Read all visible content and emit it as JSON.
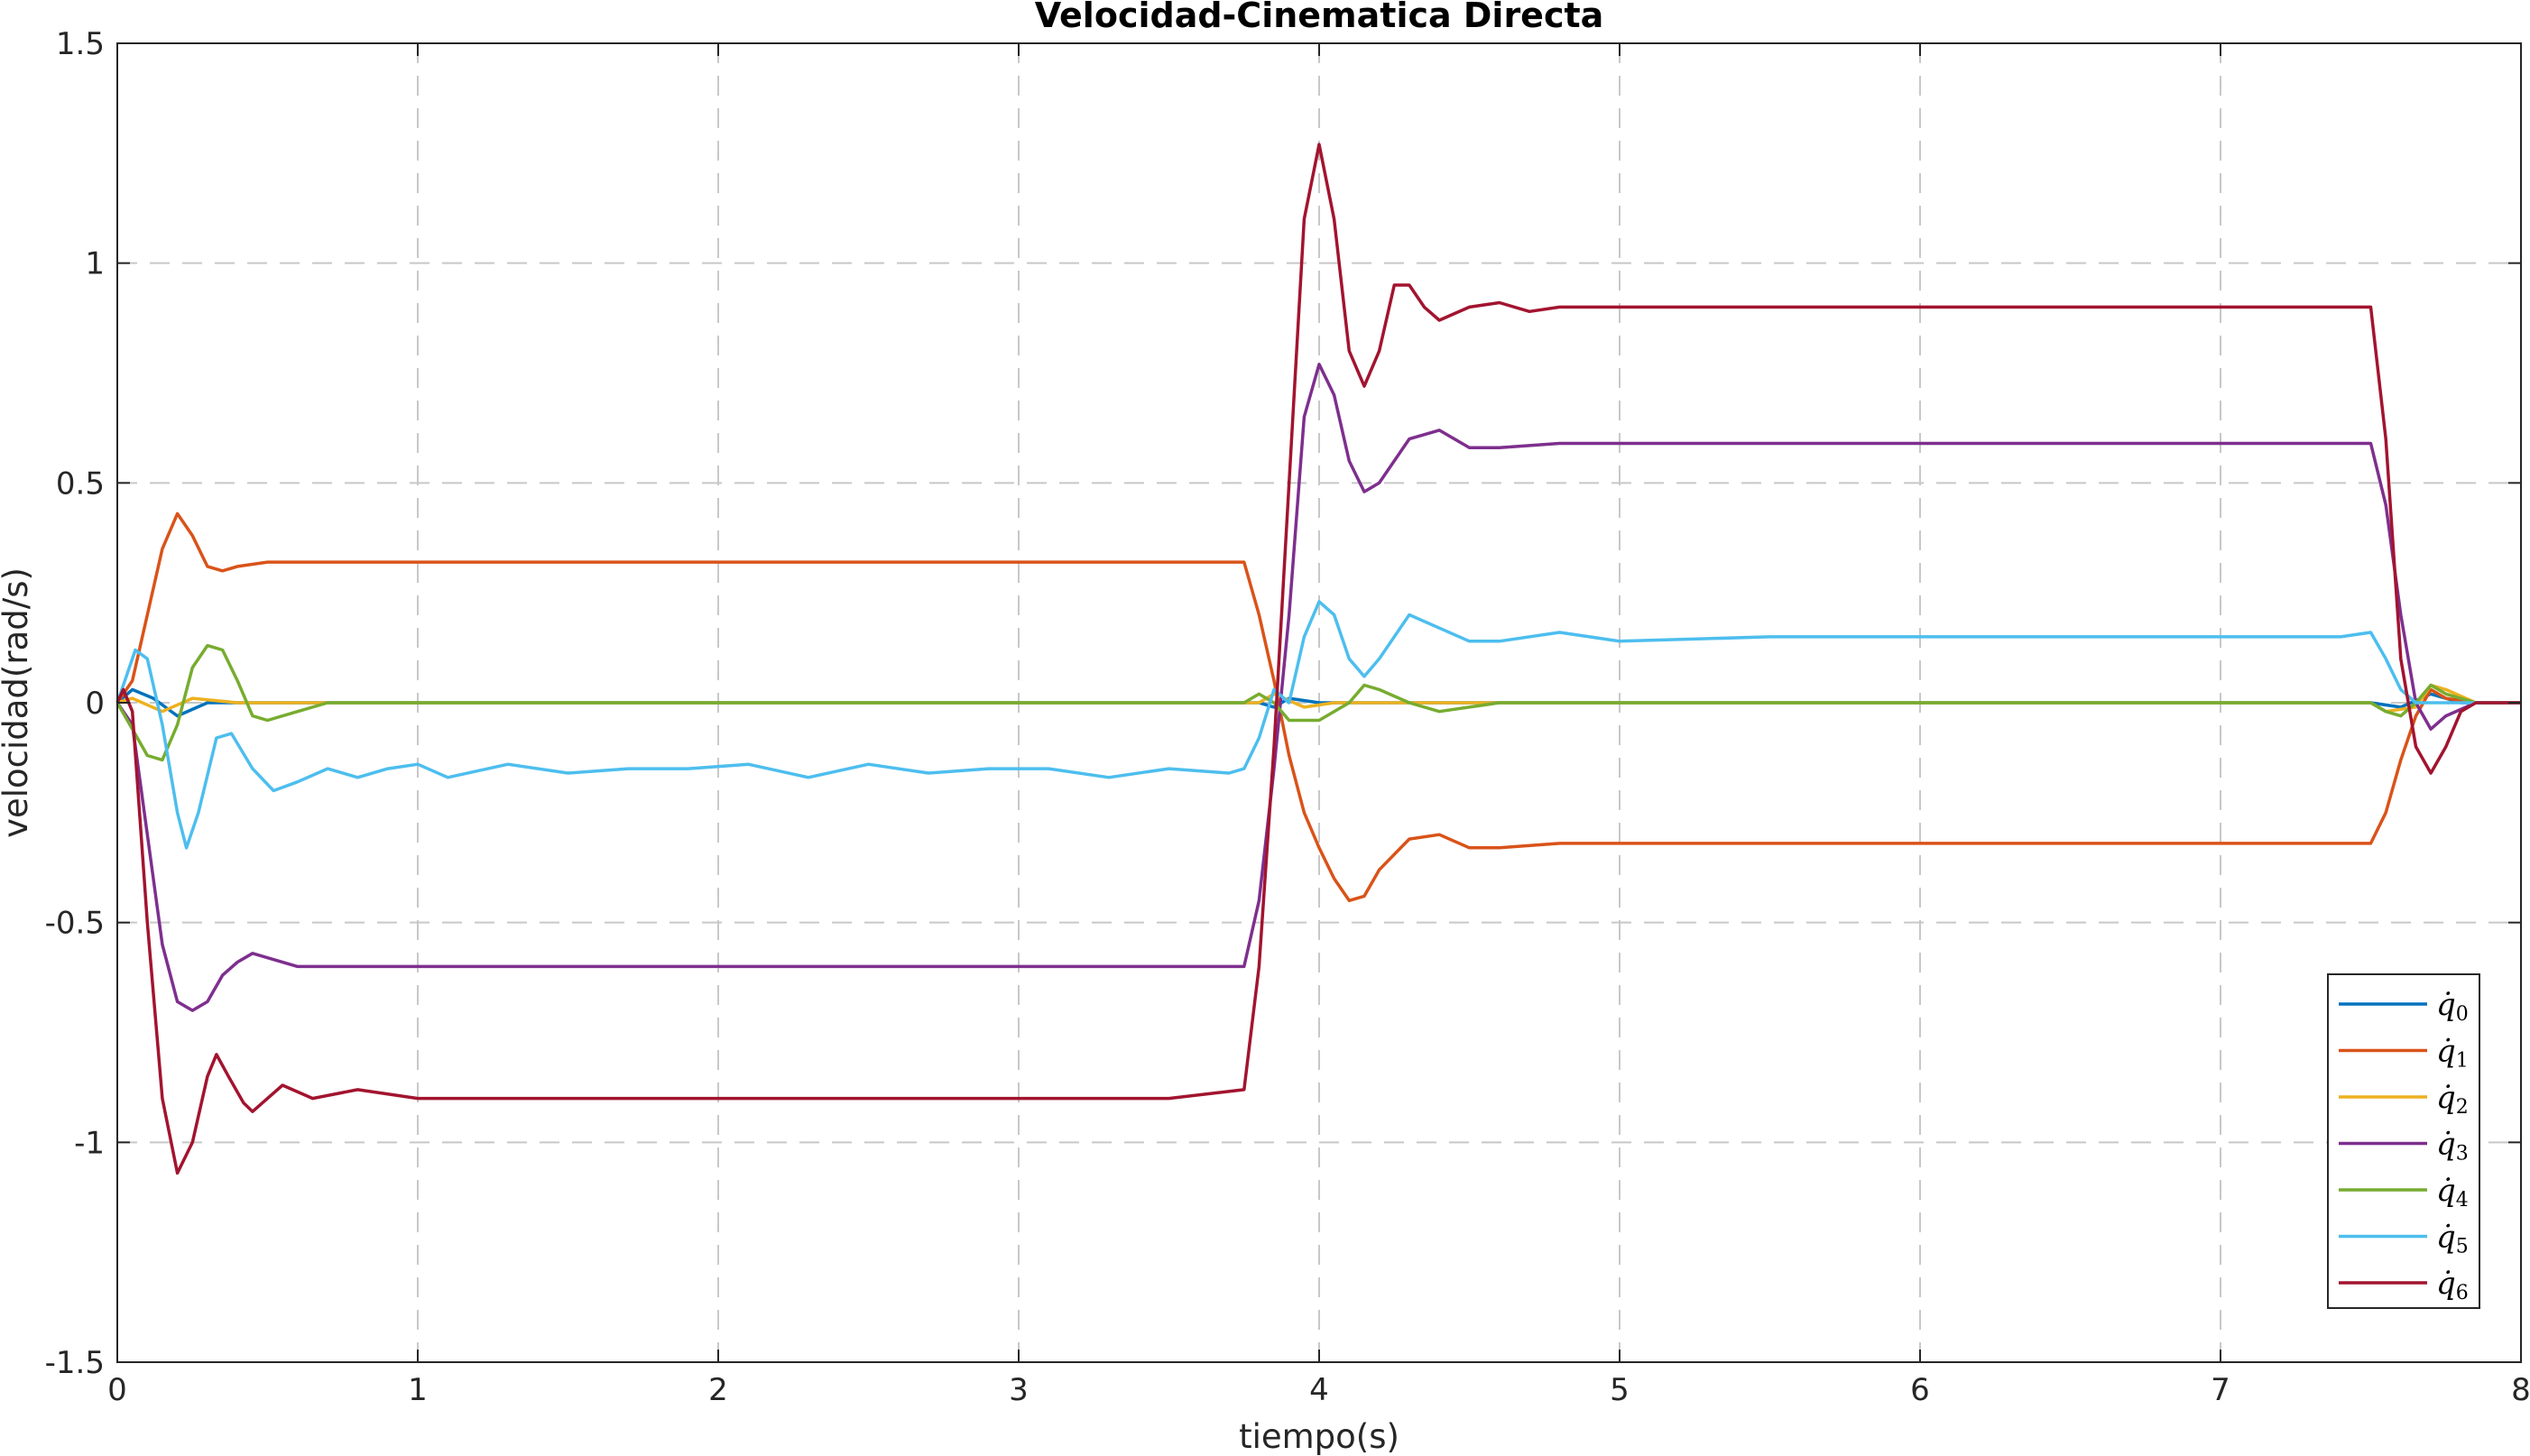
{
  "chart_data": {
    "type": "line",
    "title": "Velocidad-Cinematica Directa",
    "xlabel": "tiempo(s)",
    "ylabel": "velocidad(rad/s)",
    "xlim": [
      0,
      8
    ],
    "ylim": [
      -1.5,
      1.5
    ],
    "grid": true,
    "legend_position": "bottom-right",
    "x_ticks": [
      0,
      1,
      2,
      3,
      4,
      5,
      6,
      7,
      8
    ],
    "x_tick_labels": [
      "0",
      "1",
      "2",
      "3",
      "4",
      "5",
      "6",
      "7",
      "8"
    ],
    "y_ticks": [
      1.5,
      1,
      0.5,
      0,
      -0.5,
      -1,
      -1.5
    ],
    "y_tick_labels": [
      "1.5",
      "1",
      "0.5",
      "0",
      "-0.5",
      "-1",
      "-1.5"
    ],
    "series": [
      {
        "name": "q0",
        "legend_symbol": "q̇",
        "legend_index": "0",
        "color": "#0072BD",
        "points": [
          [
            0,
            0
          ],
          [
            0.05,
            0.03
          ],
          [
            0.12,
            0.01
          ],
          [
            0.2,
            -0.03
          ],
          [
            0.3,
            0.0
          ],
          [
            0.5,
            0.0
          ],
          [
            3.8,
            0.0
          ],
          [
            3.85,
            -0.01
          ],
          [
            3.9,
            0.01
          ],
          [
            4.0,
            0.0
          ],
          [
            7.5,
            0.0
          ],
          [
            7.6,
            -0.01
          ],
          [
            7.7,
            0.02
          ],
          [
            7.8,
            0.0
          ],
          [
            8.0,
            0.0
          ]
        ]
      },
      {
        "name": "q1",
        "legend_symbol": "q̇",
        "legend_index": "1",
        "color": "#D95319",
        "points": [
          [
            0,
            0
          ],
          [
            0.05,
            0.05
          ],
          [
            0.1,
            0.2
          ],
          [
            0.15,
            0.35
          ],
          [
            0.2,
            0.43
          ],
          [
            0.25,
            0.38
          ],
          [
            0.3,
            0.31
          ],
          [
            0.35,
            0.3
          ],
          [
            0.4,
            0.31
          ],
          [
            0.5,
            0.32
          ],
          [
            0.7,
            0.32
          ],
          [
            1.5,
            0.32
          ],
          [
            2.5,
            0.32
          ],
          [
            3.5,
            0.32
          ],
          [
            3.75,
            0.32
          ],
          [
            3.8,
            0.2
          ],
          [
            3.85,
            0.05
          ],
          [
            3.9,
            -0.12
          ],
          [
            3.95,
            -0.25
          ],
          [
            4.0,
            -0.33
          ],
          [
            4.05,
            -0.4
          ],
          [
            4.1,
            -0.45
          ],
          [
            4.15,
            -0.44
          ],
          [
            4.2,
            -0.38
          ],
          [
            4.3,
            -0.31
          ],
          [
            4.4,
            -0.3
          ],
          [
            4.5,
            -0.33
          ],
          [
            4.6,
            -0.33
          ],
          [
            4.8,
            -0.32
          ],
          [
            5.5,
            -0.32
          ],
          [
            6.5,
            -0.32
          ],
          [
            7.5,
            -0.32
          ],
          [
            7.55,
            -0.25
          ],
          [
            7.6,
            -0.13
          ],
          [
            7.65,
            -0.03
          ],
          [
            7.7,
            0.03
          ],
          [
            7.75,
            0.01
          ],
          [
            7.85,
            0.0
          ],
          [
            8.0,
            0.0
          ]
        ]
      },
      {
        "name": "q2",
        "legend_symbol": "q̇",
        "legend_index": "2",
        "color": "#EDB120",
        "points": [
          [
            0,
            0
          ],
          [
            0.05,
            0.01
          ],
          [
            0.15,
            -0.02
          ],
          [
            0.25,
            0.01
          ],
          [
            0.4,
            0.0
          ],
          [
            3.8,
            0.0
          ],
          [
            3.85,
            0.02
          ],
          [
            3.95,
            -0.01
          ],
          [
            4.05,
            0.0
          ],
          [
            7.5,
            0.0
          ],
          [
            7.55,
            -0.02
          ],
          [
            7.65,
            -0.01
          ],
          [
            7.7,
            0.04
          ],
          [
            7.75,
            0.03
          ],
          [
            7.85,
            0.0
          ],
          [
            8.0,
            0.0
          ]
        ]
      },
      {
        "name": "q3",
        "legend_symbol": "q̇",
        "legend_index": "3",
        "color": "#7E2F8E",
        "points": [
          [
            0,
            0
          ],
          [
            0.05,
            -0.05
          ],
          [
            0.1,
            -0.3
          ],
          [
            0.15,
            -0.55
          ],
          [
            0.2,
            -0.68
          ],
          [
            0.25,
            -0.7
          ],
          [
            0.3,
            -0.68
          ],
          [
            0.35,
            -0.62
          ],
          [
            0.4,
            -0.59
          ],
          [
            0.45,
            -0.57
          ],
          [
            0.5,
            -0.58
          ],
          [
            0.6,
            -0.6
          ],
          [
            0.8,
            -0.6
          ],
          [
            1.5,
            -0.6
          ],
          [
            2.5,
            -0.6
          ],
          [
            3.5,
            -0.6
          ],
          [
            3.75,
            -0.6
          ],
          [
            3.8,
            -0.45
          ],
          [
            3.85,
            -0.15
          ],
          [
            3.9,
            0.2
          ],
          [
            3.95,
            0.65
          ],
          [
            4.0,
            0.77
          ],
          [
            4.05,
            0.7
          ],
          [
            4.1,
            0.55
          ],
          [
            4.15,
            0.48
          ],
          [
            4.2,
            0.5
          ],
          [
            4.3,
            0.6
          ],
          [
            4.4,
            0.62
          ],
          [
            4.5,
            0.58
          ],
          [
            4.6,
            0.58
          ],
          [
            4.8,
            0.59
          ],
          [
            5.5,
            0.59
          ],
          [
            6.5,
            0.59
          ],
          [
            7.5,
            0.59
          ],
          [
            7.55,
            0.45
          ],
          [
            7.6,
            0.2
          ],
          [
            7.65,
            0.0
          ],
          [
            7.7,
            -0.06
          ],
          [
            7.75,
            -0.03
          ],
          [
            7.85,
            0.0
          ],
          [
            8.0,
            0.0
          ]
        ]
      },
      {
        "name": "q4",
        "legend_symbol": "q̇",
        "legend_index": "4",
        "color": "#77AC30",
        "points": [
          [
            0,
            0
          ],
          [
            0.05,
            -0.06
          ],
          [
            0.1,
            -0.12
          ],
          [
            0.15,
            -0.13
          ],
          [
            0.2,
            -0.05
          ],
          [
            0.25,
            0.08
          ],
          [
            0.3,
            0.13
          ],
          [
            0.35,
            0.12
          ],
          [
            0.4,
            0.05
          ],
          [
            0.45,
            -0.03
          ],
          [
            0.5,
            -0.04
          ],
          [
            0.6,
            -0.02
          ],
          [
            0.7,
            0.0
          ],
          [
            3.75,
            0.0
          ],
          [
            3.8,
            0.02
          ],
          [
            3.85,
            0.0
          ],
          [
            3.9,
            -0.04
          ],
          [
            4.0,
            -0.04
          ],
          [
            4.1,
            0.0
          ],
          [
            4.15,
            0.04
          ],
          [
            4.2,
            0.03
          ],
          [
            4.3,
            0.0
          ],
          [
            4.4,
            -0.02
          ],
          [
            4.6,
            0.0
          ],
          [
            7.5,
            0.0
          ],
          [
            7.55,
            -0.02
          ],
          [
            7.6,
            -0.03
          ],
          [
            7.65,
            0.0
          ],
          [
            7.7,
            0.04
          ],
          [
            7.75,
            0.02
          ],
          [
            7.85,
            0.0
          ],
          [
            8.0,
            0.0
          ]
        ]
      },
      {
        "name": "q5",
        "legend_symbol": "q̇",
        "legend_index": "5",
        "color": "#4DBEEE",
        "points": [
          [
            0,
            0
          ],
          [
            0.03,
            0.06
          ],
          [
            0.06,
            0.12
          ],
          [
            0.1,
            0.1
          ],
          [
            0.15,
            -0.05
          ],
          [
            0.2,
            -0.25
          ],
          [
            0.23,
            -0.33
          ],
          [
            0.27,
            -0.25
          ],
          [
            0.33,
            -0.08
          ],
          [
            0.38,
            -0.07
          ],
          [
            0.45,
            -0.15
          ],
          [
            0.52,
            -0.2
          ],
          [
            0.6,
            -0.18
          ],
          [
            0.7,
            -0.15
          ],
          [
            0.8,
            -0.17
          ],
          [
            0.9,
            -0.15
          ],
          [
            1.0,
            -0.14
          ],
          [
            1.1,
            -0.17
          ],
          [
            1.3,
            -0.14
          ],
          [
            1.5,
            -0.16
          ],
          [
            1.7,
            -0.15
          ],
          [
            1.9,
            -0.15
          ],
          [
            2.1,
            -0.14
          ],
          [
            2.3,
            -0.17
          ],
          [
            2.5,
            -0.14
          ],
          [
            2.7,
            -0.16
          ],
          [
            2.9,
            -0.15
          ],
          [
            3.1,
            -0.15
          ],
          [
            3.3,
            -0.17
          ],
          [
            3.5,
            -0.15
          ],
          [
            3.7,
            -0.16
          ],
          [
            3.75,
            -0.15
          ],
          [
            3.8,
            -0.08
          ],
          [
            3.85,
            0.03
          ],
          [
            3.9,
            0.0
          ],
          [
            3.95,
            0.15
          ],
          [
            4.0,
            0.23
          ],
          [
            4.05,
            0.2
          ],
          [
            4.1,
            0.1
          ],
          [
            4.15,
            0.06
          ],
          [
            4.2,
            0.1
          ],
          [
            4.3,
            0.2
          ],
          [
            4.4,
            0.17
          ],
          [
            4.5,
            0.14
          ],
          [
            4.6,
            0.14
          ],
          [
            4.8,
            0.16
          ],
          [
            5.0,
            0.14
          ],
          [
            5.5,
            0.15
          ],
          [
            6.0,
            0.15
          ],
          [
            6.5,
            0.15
          ],
          [
            7.0,
            0.15
          ],
          [
            7.4,
            0.15
          ],
          [
            7.5,
            0.16
          ],
          [
            7.55,
            0.1
          ],
          [
            7.6,
            0.03
          ],
          [
            7.65,
            0.0
          ],
          [
            7.75,
            0.0
          ],
          [
            8.0,
            0.0
          ]
        ]
      },
      {
        "name": "q6",
        "legend_symbol": "q̇",
        "legend_index": "6",
        "color": "#A2142F",
        "points": [
          [
            0,
            0
          ],
          [
            0.02,
            0.03
          ],
          [
            0.05,
            -0.02
          ],
          [
            0.1,
            -0.5
          ],
          [
            0.15,
            -0.9
          ],
          [
            0.2,
            -1.07
          ],
          [
            0.25,
            -1.0
          ],
          [
            0.3,
            -0.85
          ],
          [
            0.33,
            -0.8
          ],
          [
            0.37,
            -0.85
          ],
          [
            0.42,
            -0.91
          ],
          [
            0.45,
            -0.93
          ],
          [
            0.5,
            -0.9
          ],
          [
            0.55,
            -0.87
          ],
          [
            0.65,
            -0.9
          ],
          [
            0.8,
            -0.88
          ],
          [
            1.0,
            -0.9
          ],
          [
            1.5,
            -0.9
          ],
          [
            2.5,
            -0.9
          ],
          [
            3.5,
            -0.9
          ],
          [
            3.75,
            -0.88
          ],
          [
            3.8,
            -0.6
          ],
          [
            3.85,
            -0.1
          ],
          [
            3.9,
            0.5
          ],
          [
            3.95,
            1.1
          ],
          [
            4.0,
            1.27
          ],
          [
            4.05,
            1.1
          ],
          [
            4.1,
            0.8
          ],
          [
            4.15,
            0.72
          ],
          [
            4.2,
            0.8
          ],
          [
            4.25,
            0.95
          ],
          [
            4.3,
            0.95
          ],
          [
            4.35,
            0.9
          ],
          [
            4.4,
            0.87
          ],
          [
            4.5,
            0.9
          ],
          [
            4.6,
            0.91
          ],
          [
            4.7,
            0.89
          ],
          [
            4.8,
            0.9
          ],
          [
            5.5,
            0.9
          ],
          [
            6.5,
            0.9
          ],
          [
            7.5,
            0.9
          ],
          [
            7.55,
            0.6
          ],
          [
            7.6,
            0.1
          ],
          [
            7.65,
            -0.1
          ],
          [
            7.7,
            -0.16
          ],
          [
            7.75,
            -0.1
          ],
          [
            7.8,
            -0.02
          ],
          [
            7.85,
            0.0
          ],
          [
            8.0,
            0.0
          ]
        ]
      }
    ]
  }
}
